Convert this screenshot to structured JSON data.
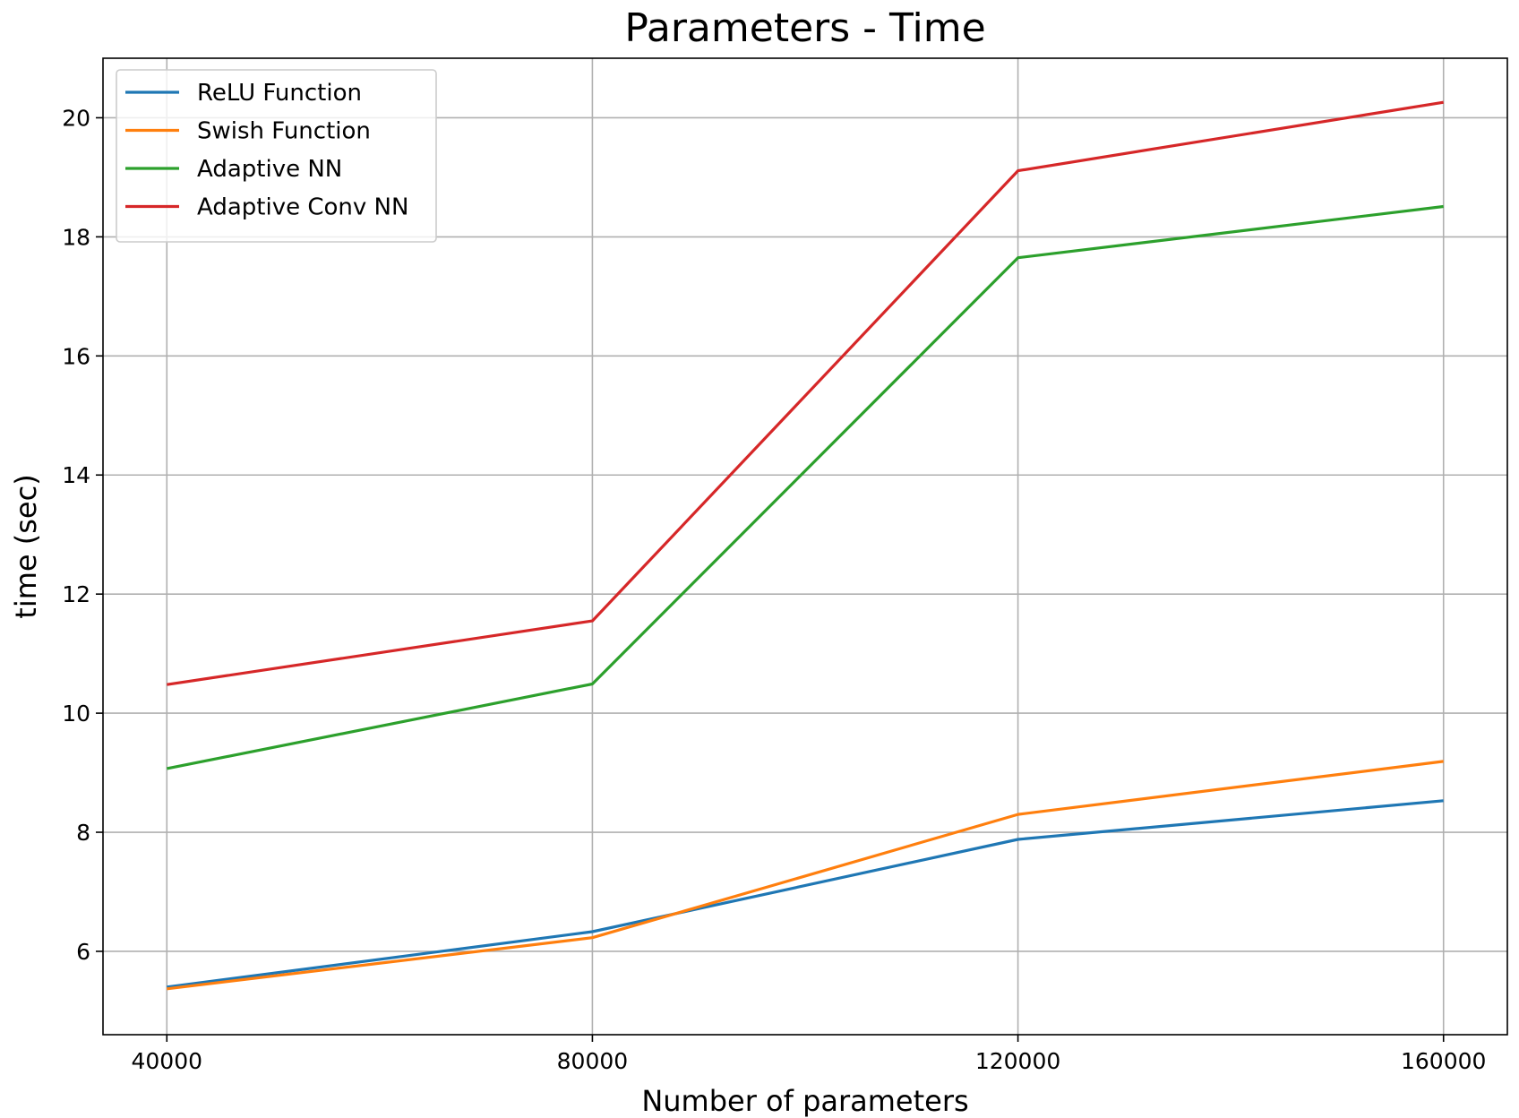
{
  "chart_data": {
    "type": "line",
    "title": "Parameters - Time",
    "xlabel": "Number of parameters",
    "ylabel": "time (sec)",
    "x": [
      40000,
      80000,
      120000,
      160000
    ],
    "xticks": [
      40000,
      80000,
      120000,
      160000
    ],
    "yticks": [
      6,
      8,
      10,
      12,
      14,
      16,
      18,
      20
    ],
    "xlim": [
      34000,
      166000
    ],
    "ylim": [
      4.6,
      21.0
    ],
    "grid": true,
    "legend_position": "top-left",
    "series": [
      {
        "name": "ReLU Function",
        "color": "#1f77b4",
        "values": [
          5.4,
          6.33,
          7.88,
          8.53
        ]
      },
      {
        "name": "Swish Function",
        "color": "#ff7f0e",
        "values": [
          5.37,
          6.23,
          8.3,
          9.19
        ]
      },
      {
        "name": "Adaptive NN",
        "color": "#2ca02c",
        "values": [
          9.07,
          10.49,
          17.65,
          18.51
        ]
      },
      {
        "name": "Adaptive Conv NN",
        "color": "#d62728",
        "values": [
          10.48,
          11.55,
          19.11,
          20.26
        ]
      }
    ]
  }
}
